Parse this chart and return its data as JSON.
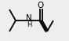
{
  "bg_color": "#eeeeee",
  "bond_color": "#000000",
  "text_color": "#000000",
  "lw": 1.3,
  "figsize": [
    8.8,
    5.2
  ],
  "dpi": 10,
  "bl": 1.4,
  "perp_off": 0.07,
  "n_label": {
    "text": "N",
    "fontsize": 7.5
  },
  "h_label": {
    "text": "H",
    "fontsize": 6.0
  },
  "o_label": {
    "text": "O",
    "fontsize": 7.5
  },
  "xlim": [
    0,
    10
  ],
  "ylim": [
    0,
    6
  ]
}
